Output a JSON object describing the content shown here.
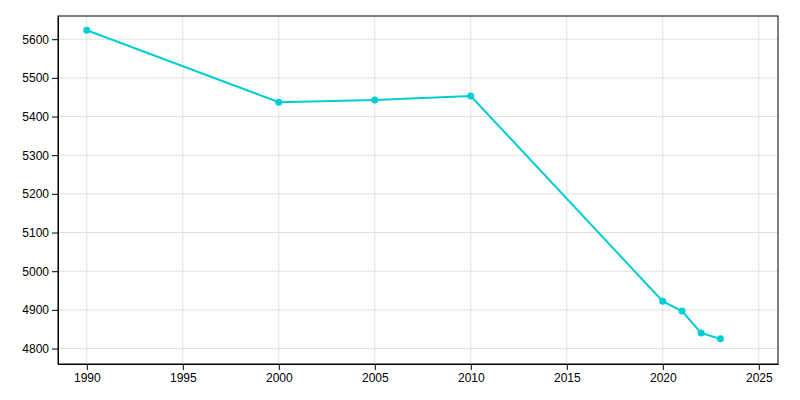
{
  "chart_data": {
    "type": "line",
    "x": [
      1990,
      2000,
      2005,
      2010,
      2020,
      2021,
      2022,
      2023
    ],
    "values": [
      5623,
      5437,
      5443,
      5453,
      4922,
      4897,
      4840,
      4825
    ],
    "color": "#00CED1",
    "marker": "circle",
    "xlim": [
      1988.5,
      2026
    ],
    "ylim": [
      4760,
      5660
    ],
    "xticks": [
      1990,
      1995,
      2000,
      2005,
      2010,
      2015,
      2020,
      2025
    ],
    "yticks": [
      4800,
      4900,
      5000,
      5100,
      5200,
      5300,
      5400,
      5500,
      5600
    ],
    "grid": true
  }
}
